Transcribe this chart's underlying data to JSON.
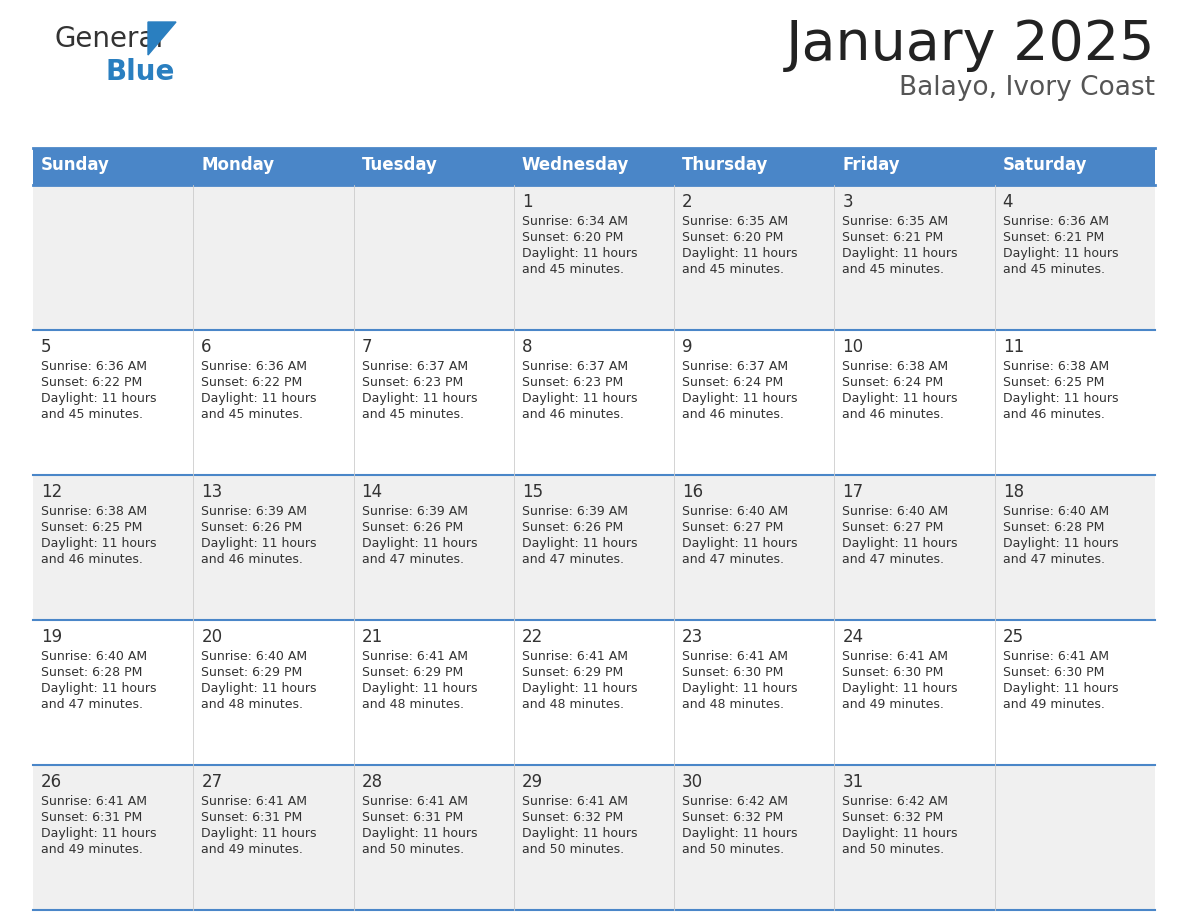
{
  "title": "January 2025",
  "subtitle": "Balayo, Ivory Coast",
  "header_bg": "#4a86c8",
  "header_text_color": "#ffffff",
  "cell_bg_odd": "#f0f0f0",
  "cell_bg_even": "#ffffff",
  "day_names": [
    "Sunday",
    "Monday",
    "Tuesday",
    "Wednesday",
    "Thursday",
    "Friday",
    "Saturday"
  ],
  "title_color": "#222222",
  "subtitle_color": "#555555",
  "border_color": "#4a86c8",
  "text_color": "#333333",
  "days": [
    {
      "date": 1,
      "col": 3,
      "row": 0,
      "sunrise": "6:34 AM",
      "sunset": "6:20 PM",
      "daylight": "11 hours",
      "daylight2": "and 45 minutes."
    },
    {
      "date": 2,
      "col": 4,
      "row": 0,
      "sunrise": "6:35 AM",
      "sunset": "6:20 PM",
      "daylight": "11 hours",
      "daylight2": "and 45 minutes."
    },
    {
      "date": 3,
      "col": 5,
      "row": 0,
      "sunrise": "6:35 AM",
      "sunset": "6:21 PM",
      "daylight": "11 hours",
      "daylight2": "and 45 minutes."
    },
    {
      "date": 4,
      "col": 6,
      "row": 0,
      "sunrise": "6:36 AM",
      "sunset": "6:21 PM",
      "daylight": "11 hours",
      "daylight2": "and 45 minutes."
    },
    {
      "date": 5,
      "col": 0,
      "row": 1,
      "sunrise": "6:36 AM",
      "sunset": "6:22 PM",
      "daylight": "11 hours",
      "daylight2": "and 45 minutes."
    },
    {
      "date": 6,
      "col": 1,
      "row": 1,
      "sunrise": "6:36 AM",
      "sunset": "6:22 PM",
      "daylight": "11 hours",
      "daylight2": "and 45 minutes."
    },
    {
      "date": 7,
      "col": 2,
      "row": 1,
      "sunrise": "6:37 AM",
      "sunset": "6:23 PM",
      "daylight": "11 hours",
      "daylight2": "and 45 minutes."
    },
    {
      "date": 8,
      "col": 3,
      "row": 1,
      "sunrise": "6:37 AM",
      "sunset": "6:23 PM",
      "daylight": "11 hours",
      "daylight2": "and 46 minutes."
    },
    {
      "date": 9,
      "col": 4,
      "row": 1,
      "sunrise": "6:37 AM",
      "sunset": "6:24 PM",
      "daylight": "11 hours",
      "daylight2": "and 46 minutes."
    },
    {
      "date": 10,
      "col": 5,
      "row": 1,
      "sunrise": "6:38 AM",
      "sunset": "6:24 PM",
      "daylight": "11 hours",
      "daylight2": "and 46 minutes."
    },
    {
      "date": 11,
      "col": 6,
      "row": 1,
      "sunrise": "6:38 AM",
      "sunset": "6:25 PM",
      "daylight": "11 hours",
      "daylight2": "and 46 minutes."
    },
    {
      "date": 12,
      "col": 0,
      "row": 2,
      "sunrise": "6:38 AM",
      "sunset": "6:25 PM",
      "daylight": "11 hours",
      "daylight2": "and 46 minutes."
    },
    {
      "date": 13,
      "col": 1,
      "row": 2,
      "sunrise": "6:39 AM",
      "sunset": "6:26 PM",
      "daylight": "11 hours",
      "daylight2": "and 46 minutes."
    },
    {
      "date": 14,
      "col": 2,
      "row": 2,
      "sunrise": "6:39 AM",
      "sunset": "6:26 PM",
      "daylight": "11 hours",
      "daylight2": "and 47 minutes."
    },
    {
      "date": 15,
      "col": 3,
      "row": 2,
      "sunrise": "6:39 AM",
      "sunset": "6:26 PM",
      "daylight": "11 hours",
      "daylight2": "and 47 minutes."
    },
    {
      "date": 16,
      "col": 4,
      "row": 2,
      "sunrise": "6:40 AM",
      "sunset": "6:27 PM",
      "daylight": "11 hours",
      "daylight2": "and 47 minutes."
    },
    {
      "date": 17,
      "col": 5,
      "row": 2,
      "sunrise": "6:40 AM",
      "sunset": "6:27 PM",
      "daylight": "11 hours",
      "daylight2": "and 47 minutes."
    },
    {
      "date": 18,
      "col": 6,
      "row": 2,
      "sunrise": "6:40 AM",
      "sunset": "6:28 PM",
      "daylight": "11 hours",
      "daylight2": "and 47 minutes."
    },
    {
      "date": 19,
      "col": 0,
      "row": 3,
      "sunrise": "6:40 AM",
      "sunset": "6:28 PM",
      "daylight": "11 hours",
      "daylight2": "and 47 minutes."
    },
    {
      "date": 20,
      "col": 1,
      "row": 3,
      "sunrise": "6:40 AM",
      "sunset": "6:29 PM",
      "daylight": "11 hours",
      "daylight2": "and 48 minutes."
    },
    {
      "date": 21,
      "col": 2,
      "row": 3,
      "sunrise": "6:41 AM",
      "sunset": "6:29 PM",
      "daylight": "11 hours",
      "daylight2": "and 48 minutes."
    },
    {
      "date": 22,
      "col": 3,
      "row": 3,
      "sunrise": "6:41 AM",
      "sunset": "6:29 PM",
      "daylight": "11 hours",
      "daylight2": "and 48 minutes."
    },
    {
      "date": 23,
      "col": 4,
      "row": 3,
      "sunrise": "6:41 AM",
      "sunset": "6:30 PM",
      "daylight": "11 hours",
      "daylight2": "and 48 minutes."
    },
    {
      "date": 24,
      "col": 5,
      "row": 3,
      "sunrise": "6:41 AM",
      "sunset": "6:30 PM",
      "daylight": "11 hours",
      "daylight2": "and 49 minutes."
    },
    {
      "date": 25,
      "col": 6,
      "row": 3,
      "sunrise": "6:41 AM",
      "sunset": "6:30 PM",
      "daylight": "11 hours",
      "daylight2": "and 49 minutes."
    },
    {
      "date": 26,
      "col": 0,
      "row": 4,
      "sunrise": "6:41 AM",
      "sunset": "6:31 PM",
      "daylight": "11 hours",
      "daylight2": "and 49 minutes."
    },
    {
      "date": 27,
      "col": 1,
      "row": 4,
      "sunrise": "6:41 AM",
      "sunset": "6:31 PM",
      "daylight": "11 hours",
      "daylight2": "and 49 minutes."
    },
    {
      "date": 28,
      "col": 2,
      "row": 4,
      "sunrise": "6:41 AM",
      "sunset": "6:31 PM",
      "daylight": "11 hours",
      "daylight2": "and 50 minutes."
    },
    {
      "date": 29,
      "col": 3,
      "row": 4,
      "sunrise": "6:41 AM",
      "sunset": "6:32 PM",
      "daylight": "11 hours",
      "daylight2": "and 50 minutes."
    },
    {
      "date": 30,
      "col": 4,
      "row": 4,
      "sunrise": "6:42 AM",
      "sunset": "6:32 PM",
      "daylight": "11 hours",
      "daylight2": "and 50 minutes."
    },
    {
      "date": 31,
      "col": 5,
      "row": 4,
      "sunrise": "6:42 AM",
      "sunset": "6:32 PM",
      "daylight": "11 hours",
      "daylight2": "and 50 minutes."
    }
  ]
}
